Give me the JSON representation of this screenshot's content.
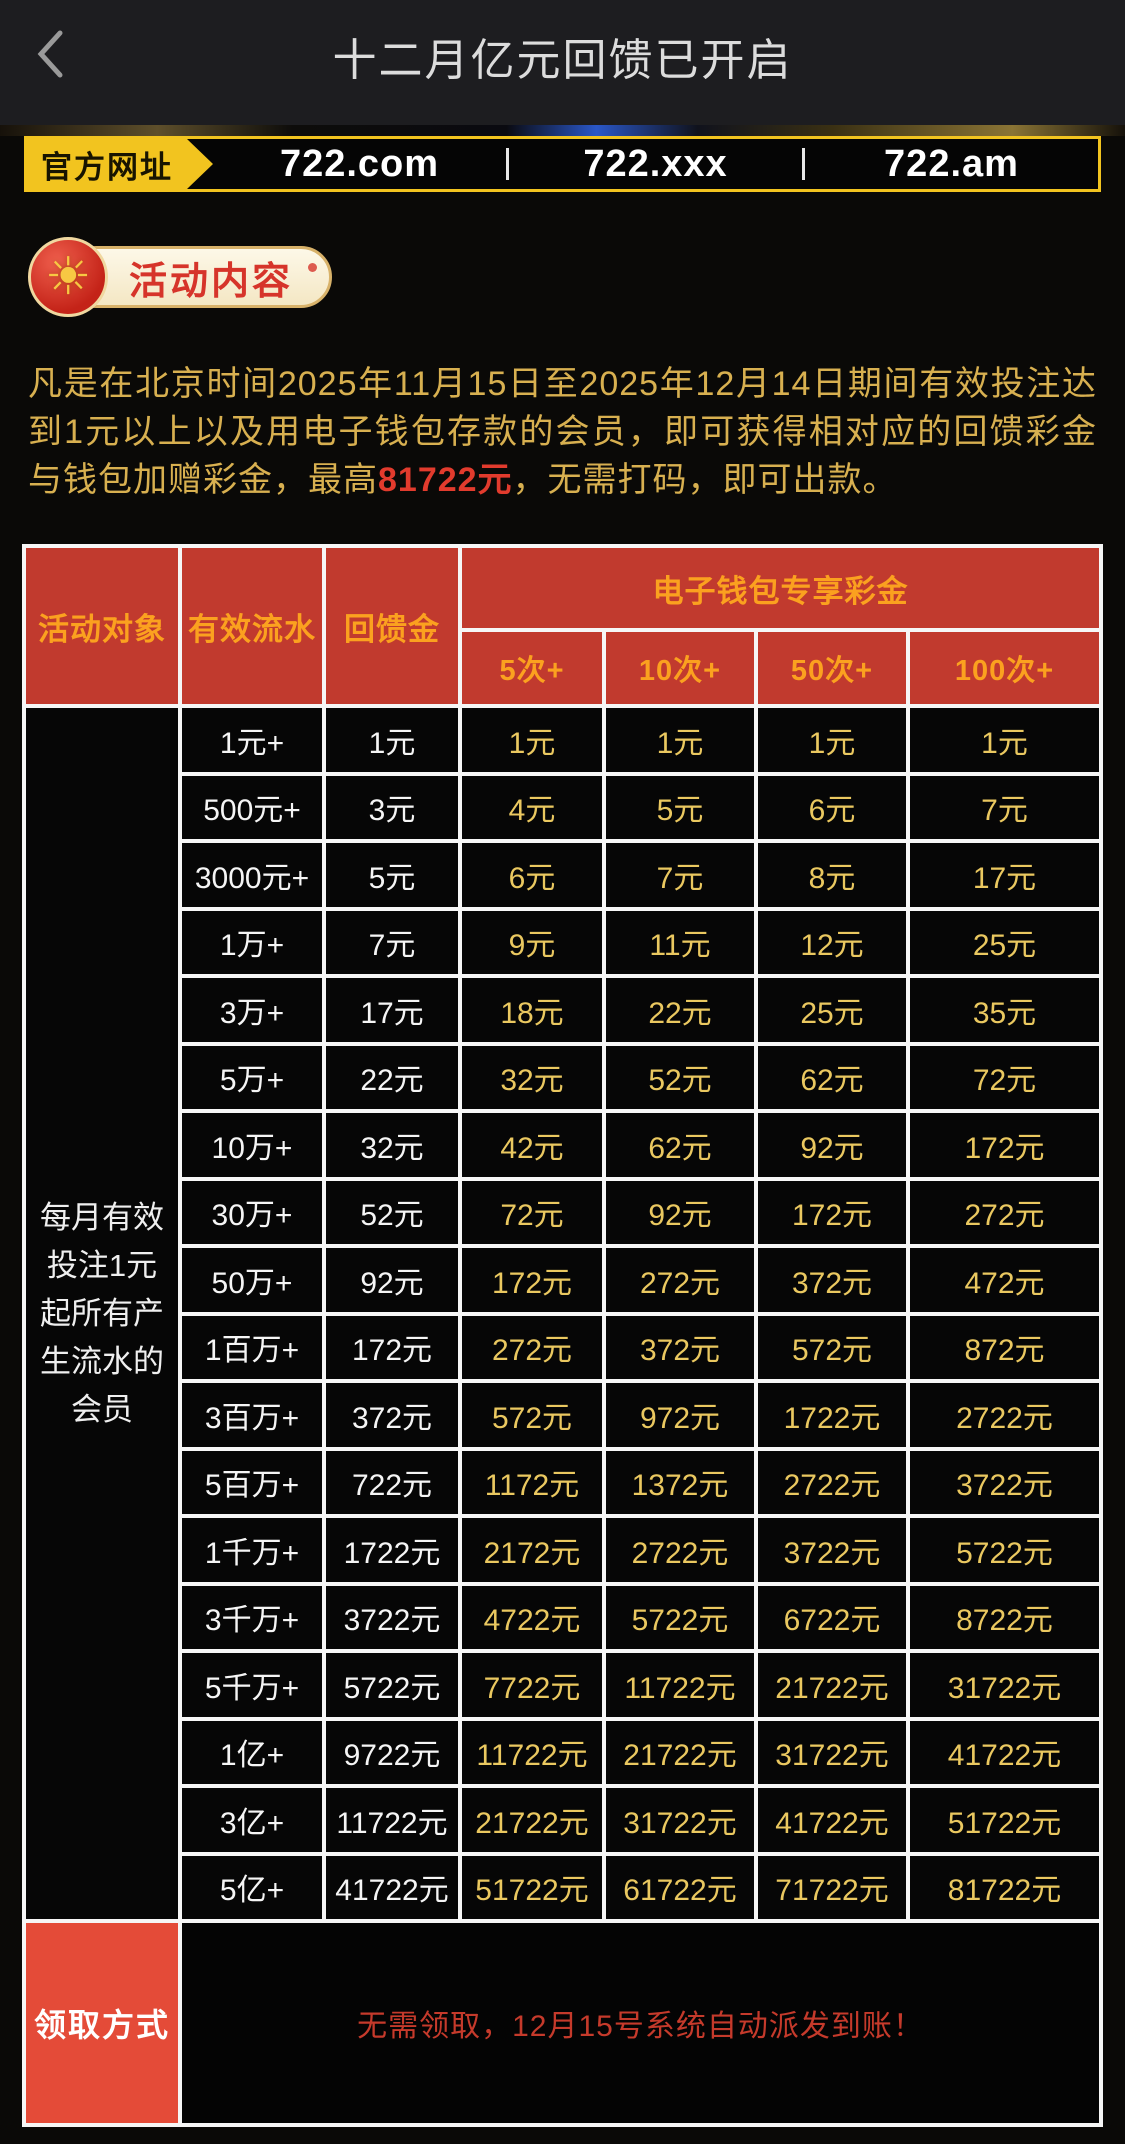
{
  "header": {
    "title": "十二月亿元回馈已开启"
  },
  "banner": {
    "label": "官方网址",
    "urls": [
      "722.com",
      "722.xxx",
      "722.am"
    ]
  },
  "badge": {
    "icon": "sun-icon",
    "label": "活动内容"
  },
  "intro": {
    "before": "凡是在北京时间2025年11月15日至2025年12月14日期间有效投注达到1元以上以及用电子钱包存款的会员，即可获得相对应的回馈彩金与钱包加赠彩金，最高",
    "highlight": "81722元",
    "after": "，无需打码，即可出款。"
  },
  "table": {
    "headers": {
      "audience": "活动对象",
      "turnover": "有效流水",
      "rebate": "回馈金",
      "wallet_group": "电子钱包专享彩金",
      "wallet_tiers": [
        "5次+",
        "10次+",
        "50次+",
        "100次+"
      ]
    },
    "audience_note": "每月有效投注1元起所有产生流水的会员",
    "rows": [
      [
        "1元+",
        "1元",
        "1元",
        "1元",
        "1元",
        "1元"
      ],
      [
        "500元+",
        "3元",
        "4元",
        "5元",
        "6元",
        "7元"
      ],
      [
        "3000元+",
        "5元",
        "6元",
        "7元",
        "8元",
        "17元"
      ],
      [
        "1万+",
        "7元",
        "9元",
        "11元",
        "12元",
        "25元"
      ],
      [
        "3万+",
        "17元",
        "18元",
        "22元",
        "25元",
        "35元"
      ],
      [
        "5万+",
        "22元",
        "32元",
        "52元",
        "62元",
        "72元"
      ],
      [
        "10万+",
        "32元",
        "42元",
        "62元",
        "92元",
        "172元"
      ],
      [
        "30万+",
        "52元",
        "72元",
        "92元",
        "172元",
        "272元"
      ],
      [
        "50万+",
        "92元",
        "172元",
        "272元",
        "372元",
        "472元"
      ],
      [
        "1百万+",
        "172元",
        "272元",
        "372元",
        "572元",
        "872元"
      ],
      [
        "3百万+",
        "372元",
        "572元",
        "972元",
        "1722元",
        "2722元"
      ],
      [
        "5百万+",
        "722元",
        "1172元",
        "1372元",
        "2722元",
        "3722元"
      ],
      [
        "1千万+",
        "1722元",
        "2172元",
        "2722元",
        "3722元",
        "5722元"
      ],
      [
        "3千万+",
        "3722元",
        "4722元",
        "5722元",
        "6722元",
        "8722元"
      ],
      [
        "5千万+",
        "5722元",
        "7722元",
        "11722元",
        "21722元",
        "31722元"
      ],
      [
        "1亿+",
        "9722元",
        "11722元",
        "21722元",
        "31722元",
        "41722元"
      ],
      [
        "3亿+",
        "11722元",
        "21722元",
        "31722元",
        "41722元",
        "51722元"
      ],
      [
        "5亿+",
        "41722元",
        "51722元",
        "61722元",
        "71722元",
        "81722元"
      ]
    ],
    "claim": {
      "label": "领取方式",
      "message": "无需领取，12月15号系统自动派发到账！"
    }
  },
  "colors": {
    "header_red": "#c13a2e",
    "claim_red": "#e44b38",
    "header_text_gold": "#fba11f",
    "value_gold": "#eac860",
    "intro_gold": "#d8b050",
    "highlight_red": "#e23b2d",
    "banner_yellow": "#f2c41f"
  }
}
